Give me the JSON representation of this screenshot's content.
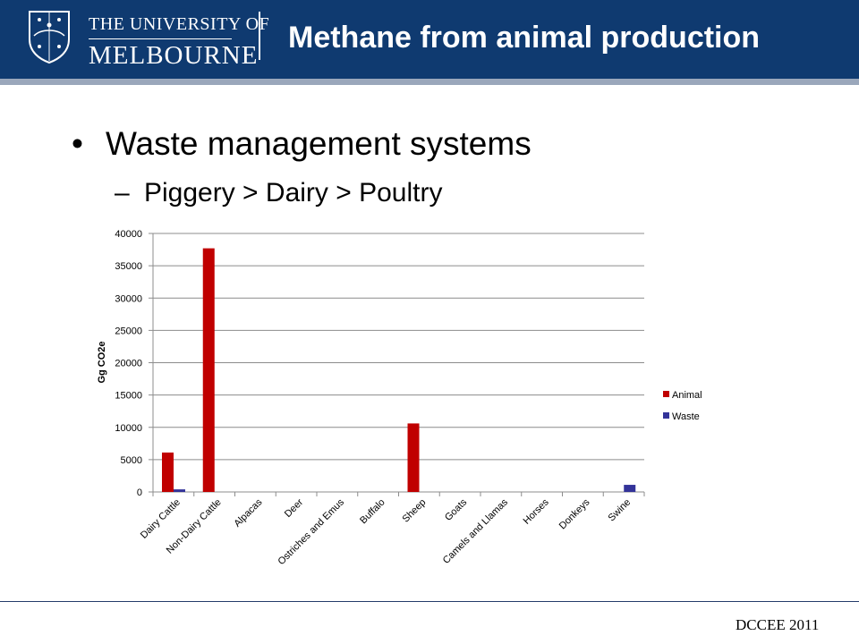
{
  "header": {
    "logo_line1": "THE UNIVERSITY OF",
    "logo_line2": "MELBOURNE",
    "title": "Methane from animal production"
  },
  "bullets": [
    {
      "level": 1,
      "marker": "•",
      "text": "Waste management systems"
    },
    {
      "level": 2,
      "marker": "–",
      "text": "Piggery > Dairy > Poultry"
    }
  ],
  "chart_data": {
    "type": "bar",
    "title": "",
    "xlabel": "",
    "ylabel": "Gg CO2e",
    "ylim": [
      0,
      40000
    ],
    "yticks": [
      0,
      5000,
      10000,
      15000,
      20000,
      25000,
      30000,
      35000,
      40000
    ],
    "grid": true,
    "legend_position": "right",
    "categories": [
      "Dairy Cattle",
      "Non-Dairy Cattle",
      "Alpacas",
      "Deer",
      "Ostriches and Emus",
      "Buffalo",
      "Sheep",
      "Goats",
      "Camels and Llamas",
      "Horses",
      "Donkeys",
      "Swine"
    ],
    "series": [
      {
        "name": "Animal",
        "color": "#c00000",
        "values": [
          6100,
          37700,
          0,
          0,
          0,
          0,
          10600,
          0,
          0,
          0,
          0,
          0
        ]
      },
      {
        "name": "Waste",
        "color": "#333399",
        "values": [
          400,
          0,
          0,
          0,
          0,
          0,
          0,
          0,
          0,
          0,
          0,
          1100
        ]
      }
    ]
  },
  "footer": {
    "source": "DCCEE 2011"
  }
}
